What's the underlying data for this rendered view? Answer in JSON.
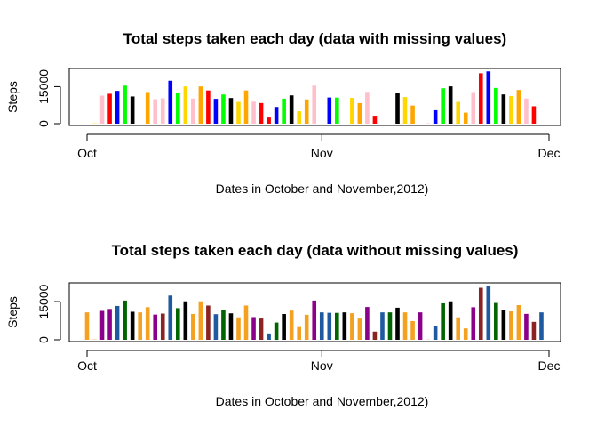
{
  "chart_data": [
    {
      "type": "bar",
      "title": "Total steps taken each day (data with missing values)",
      "xlabel": "Dates in October and November,2012)",
      "ylabel": "Steps",
      "x_ticks": [
        "Oct",
        "Nov",
        "Dec"
      ],
      "x_tick_dates": [
        "2012-10-01",
        "2012-11-01",
        "2012-12-01"
      ],
      "y_ticks": [
        0,
        15000
      ],
      "ylim": [
        0,
        22000
      ],
      "first_date": "2012-10-01",
      "values": [
        0,
        126,
        11352,
        12116,
        13294,
        15420,
        11015,
        0,
        12811,
        9900,
        10304,
        17382,
        12426,
        15098,
        10139,
        15084,
        13452,
        10056,
        11829,
        10395,
        8821,
        13460,
        8918,
        8355,
        2492,
        6778,
        10119,
        11458,
        5018,
        9819,
        15414,
        0,
        10600,
        10571,
        0,
        10439,
        8334,
        12883,
        3219,
        0,
        0,
        12608,
        10765,
        7336,
        0,
        41,
        5441,
        14339,
        15110,
        8841,
        4472,
        12787,
        20427,
        21194,
        14478,
        11834,
        11162,
        13646,
        10183,
        7047,
        0
      ],
      "colors": [
        "#ffd700",
        "#ffd700",
        "#ffc0cb",
        "#ff0000",
        "#0000ff",
        "#00ff00",
        "#000000",
        "#ffd700",
        "#ffa500",
        "#ffc0cb",
        "#ffc0cb",
        "#0000ff",
        "#00ff00",
        "#ffd700",
        "#ffc0cb",
        "#ffa500",
        "#ff0000",
        "#0000ff",
        "#00ff00",
        "#000000",
        "#ffd700",
        "#ffa500",
        "#ffc0cb",
        "#ff0000",
        "#ff0000",
        "#0000ff",
        "#00ff00",
        "#000000",
        "#ffd700",
        "#ffa500",
        "#ffc0cb",
        "#ff0000",
        "#0000ff",
        "#00ff00",
        "#000000",
        "#ffd700",
        "#ffa500",
        "#ffc0cb",
        "#ff0000",
        "#0000ff",
        "#00ff00",
        "#000000",
        "#ffd700",
        "#ffa500",
        "#ffc0cb",
        "#ff0000",
        "#0000ff",
        "#00ff00",
        "#000000",
        "#ffd700",
        "#ffa500",
        "#ffc0cb",
        "#ff0000",
        "#0000ff",
        "#00ff00",
        "#000000",
        "#ffd700",
        "#ffa500",
        "#ffc0cb",
        "#ff0000",
        "#0000ff"
      ],
      "grid": false,
      "legend": "none"
    },
    {
      "type": "bar",
      "title": "Total steps taken each day (data without missing values)",
      "xlabel": "Dates in October and November,2012)",
      "ylabel": "Steps",
      "x_ticks": [
        "Oct",
        "Nov",
        "Dec"
      ],
      "x_tick_dates": [
        "2012-10-01",
        "2012-11-01",
        "2012-12-01"
      ],
      "y_ticks": [
        0,
        15000
      ],
      "ylim": [
        0,
        22000
      ],
      "first_date": "2012-10-01",
      "values": [
        10766,
        126,
        11352,
        12116,
        13294,
        15420,
        11015,
        10766,
        12811,
        9900,
        10304,
        17382,
        12426,
        15098,
        10139,
        15084,
        13452,
        10056,
        11829,
        10395,
        8821,
        13460,
        8918,
        8355,
        2492,
        6778,
        10119,
        11458,
        5018,
        9819,
        15414,
        10766,
        10600,
        10571,
        10766,
        10439,
        8334,
        12883,
        3219,
        10766,
        10766,
        12608,
        10765,
        7336,
        10766,
        41,
        5441,
        14339,
        15110,
        8841,
        4472,
        12787,
        20427,
        21194,
        14478,
        11834,
        11162,
        13646,
        10183,
        7047,
        10766
      ],
      "colors": [
        "#f4a020",
        "#f4a020",
        "#8b008b",
        "#8b008b",
        "#1f5aa0",
        "#006400",
        "#000000",
        "#f4a020",
        "#f4a020",
        "#8b008b",
        "#8b2323",
        "#1f5aa0",
        "#006400",
        "#000000",
        "#f4a020",
        "#f4a020",
        "#8b2323",
        "#1f5aa0",
        "#006400",
        "#000000",
        "#f4a020",
        "#f4a020",
        "#8b008b",
        "#8b2323",
        "#1f5aa0",
        "#006400",
        "#000000",
        "#f4a020",
        "#f4a020",
        "#f4a020",
        "#8b008b",
        "#1f5aa0",
        "#1f5aa0",
        "#006400",
        "#000000",
        "#f4a020",
        "#f4a020",
        "#8b008b",
        "#8b2323",
        "#1f5aa0",
        "#006400",
        "#000000",
        "#f4a020",
        "#f4a020",
        "#8b008b",
        "#8b2323",
        "#1f5aa0",
        "#006400",
        "#000000",
        "#f4a020",
        "#f4a020",
        "#8b008b",
        "#8b2323",
        "#1f5aa0",
        "#006400",
        "#000000",
        "#f4a020",
        "#f4a020",
        "#8b008b",
        "#8b2323",
        "#1f5aa0"
      ],
      "grid": false,
      "legend": "none"
    }
  ]
}
